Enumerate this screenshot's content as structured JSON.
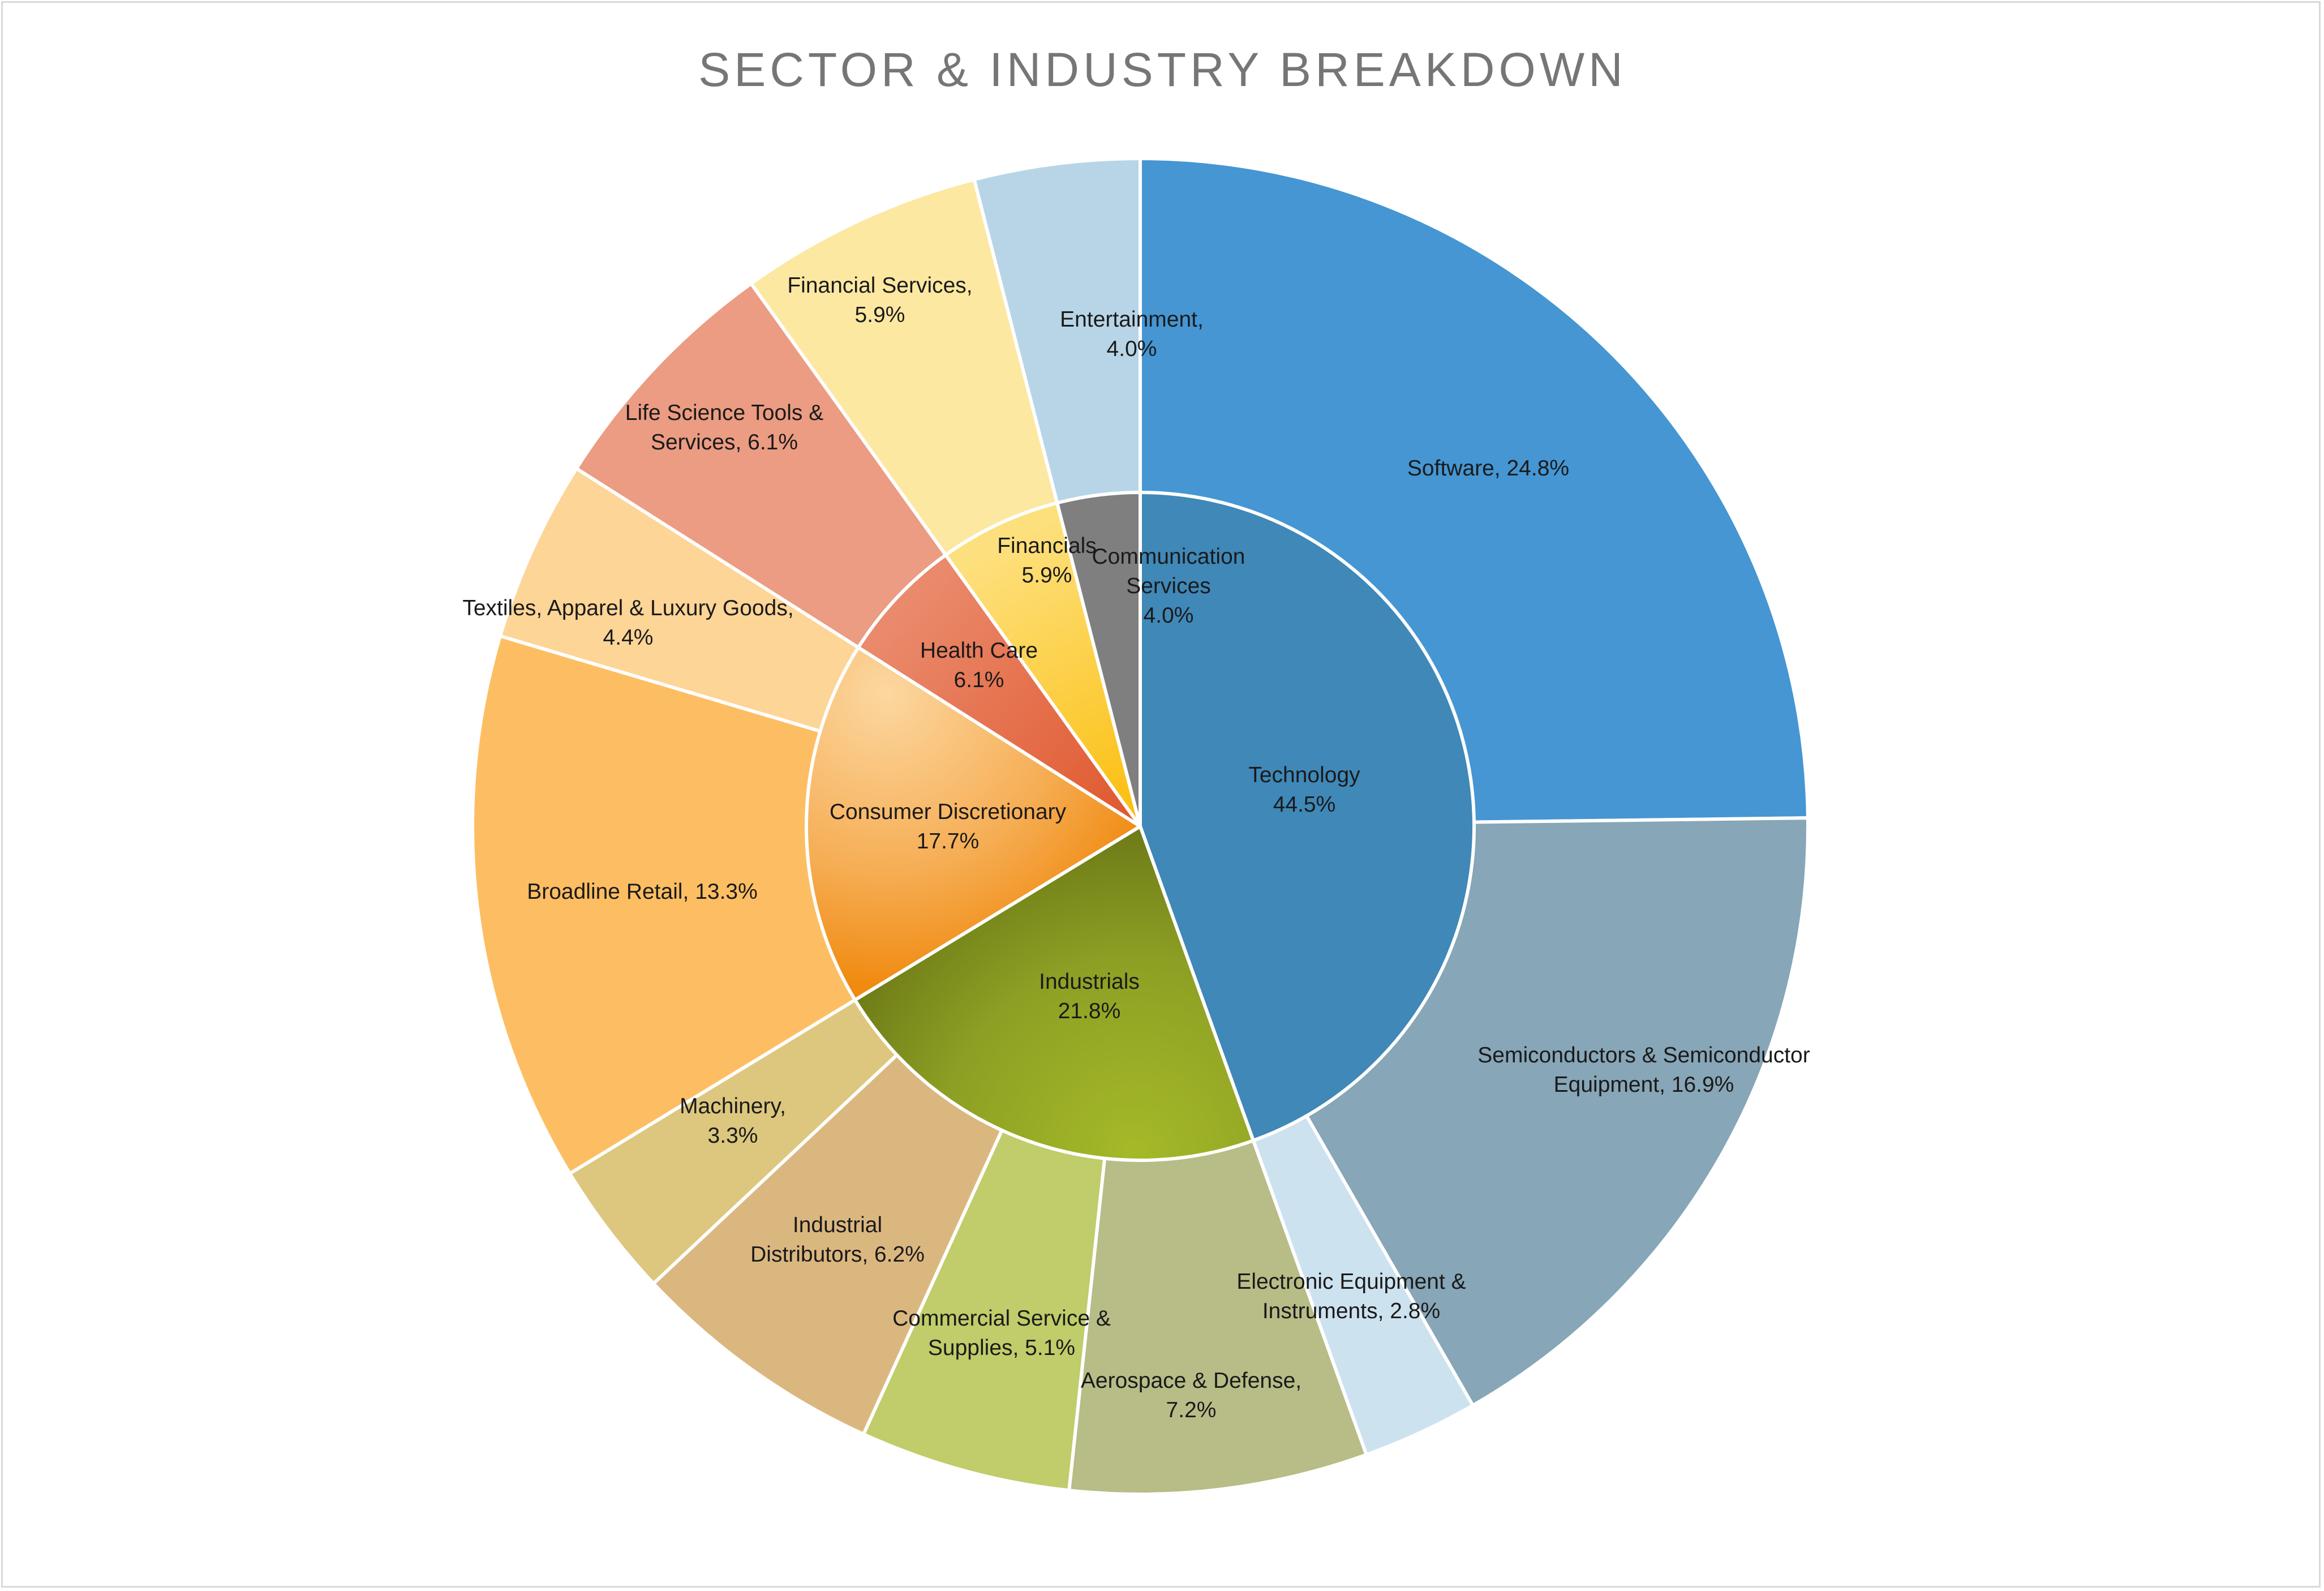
{
  "chart_data": {
    "type": "pie",
    "subtype": "sunburst",
    "title": "SECTOR & INDUSTRY BREAKDOWN",
    "inner_ring": [
      {
        "name": "Technology",
        "value": 44.5,
        "label": "Technology\n44.5%",
        "color": "#3f88b8"
      },
      {
        "name": "Industrials",
        "value": 21.8,
        "label": "Industrials\n21.8%",
        "color": "#8a9a20"
      },
      {
        "name": "Consumer Discretionary",
        "value": 17.7,
        "label": "Consumer Discretionary\n17.7%",
        "color": "#f5a94a"
      },
      {
        "name": "Health Care",
        "value": 6.1,
        "label": "Health Care\n6.1%",
        "color": "#e5704a"
      },
      {
        "name": "Financials",
        "value": 5.9,
        "label": "Financials\n5.9%",
        "color": "#fcc728"
      },
      {
        "name": "Communication Services",
        "value": 4.0,
        "label": "Communication\nServices\n4.0%",
        "color": "#7f7f7f"
      }
    ],
    "outer_ring": [
      {
        "name": "Software",
        "sector": "Technology",
        "value": 24.8,
        "label": "Software, 24.8%",
        "color": "#4596d3"
      },
      {
        "name": "Semiconductors & Semiconductor Equipment",
        "sector": "Technology",
        "value": 16.9,
        "label": "Semiconductors & Semiconductor\nEquipment, 16.9%",
        "color": "#87a6b7"
      },
      {
        "name": "Electronic Equipment & Instruments",
        "sector": "Technology",
        "value": 2.8,
        "label": "Electronic Equipment &\nInstruments, 2.8%",
        "color": "#cde2ef"
      },
      {
        "name": "Aerospace & Defense",
        "sector": "Industrials",
        "value": 7.2,
        "label": "Aerospace & Defense,\n7.2%",
        "color": "#b8bc86"
      },
      {
        "name": "Commercial Service & Supplies",
        "sector": "Industrials",
        "value": 5.1,
        "label": "Commercial Service &\nSupplies, 5.1%",
        "color": "#c1cc6a"
      },
      {
        "name": "Industrial Distributors",
        "sector": "Industrials",
        "value": 6.2,
        "label": "Industrial\nDistributors, 6.2%",
        "color": "#dbb780"
      },
      {
        "name": "Machinery",
        "sector": "Industrials",
        "value": 3.3,
        "label": "Machinery,\n3.3%",
        "color": "#ddc77e"
      },
      {
        "name": "Broadline Retail",
        "sector": "Consumer Discretionary",
        "value": 13.3,
        "label": "Broadline Retail, 13.3%",
        "color": "#fdbe63"
      },
      {
        "name": "Textiles, Apparel & Luxury Goods",
        "sector": "Consumer Discretionary",
        "value": 4.4,
        "label": "Textiles, Apparel & Luxury Goods,\n4.4%",
        "color": "#fdd597"
      },
      {
        "name": "Life Science Tools & Services",
        "sector": "Health Care",
        "value": 6.1,
        "label": "Life Science Tools &\nServices, 6.1%",
        "color": "#eb9c82"
      },
      {
        "name": "Financial Services",
        "sector": "Financials",
        "value": 5.9,
        "label": "Financial Services,\n5.9%",
        "color": "#fde8a2"
      },
      {
        "name": "Entertainment",
        "sector": "Communication Services",
        "value": 4.0,
        "label": "Entertainment,\n4.0%",
        "color": "#b7d5e6"
      }
    ]
  }
}
